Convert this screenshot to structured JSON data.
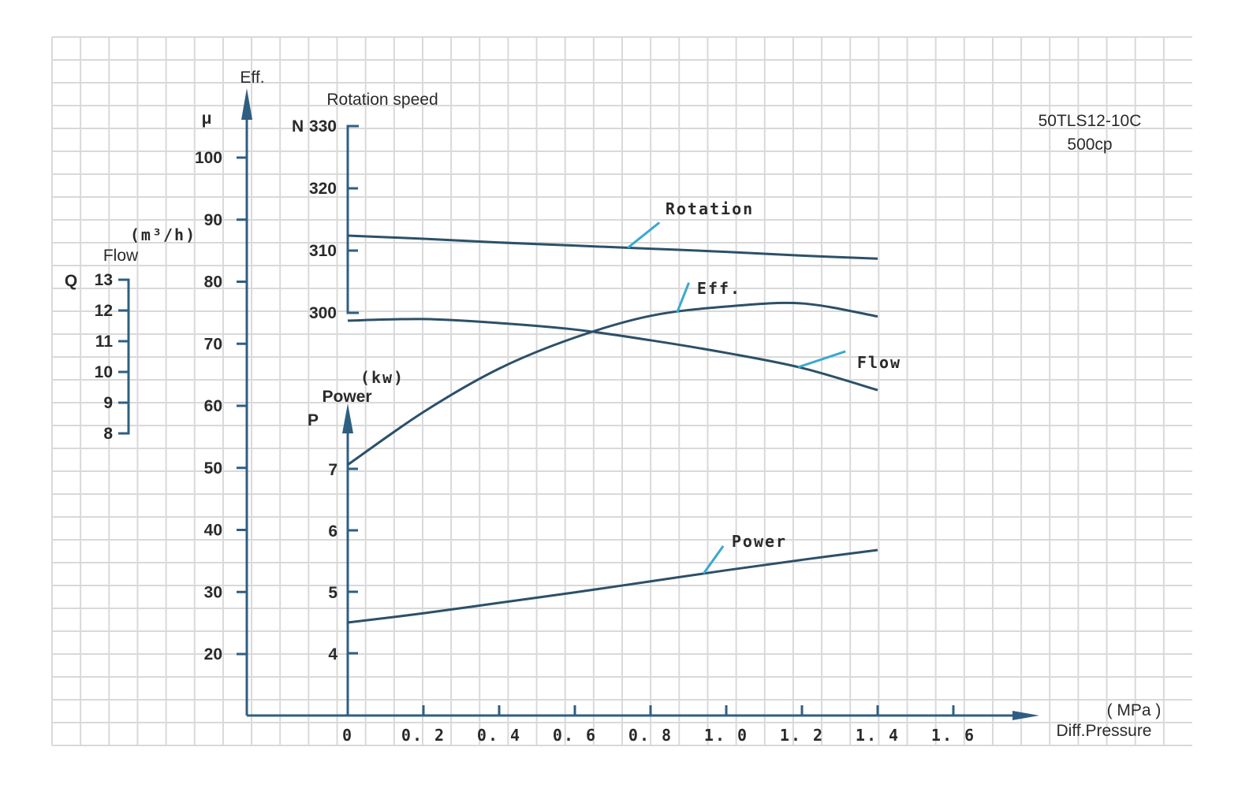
{
  "colors": {
    "axis": "#2f5f80",
    "curve": "#2c5069",
    "leader": "#3aa9cc",
    "grid": "#d9d9d9"
  },
  "chart_data": {
    "type": "line",
    "title": "50TLS12-10C",
    "subtitle": "500cp",
    "grid": true,
    "x": [
      0,
      0.2,
      0.4,
      0.6,
      0.8,
      1.0,
      1.2,
      1.4
    ],
    "xlabel": "Diff.Pressure",
    "xunit": "( MPa )",
    "xlim": [
      0,
      1.7
    ],
    "xticks": [
      "0",
      "0. 2",
      "0. 4",
      "0. 6",
      "0. 8",
      "1. 0",
      "1. 2",
      "1. 4",
      "1. 6"
    ],
    "axes": {
      "eff": {
        "label": "Eff.",
        "symbol": "μ",
        "range": [
          20,
          100
        ],
        "ticks": [
          "100",
          "90",
          "80",
          "70",
          "60",
          "50",
          "40",
          "30",
          "20"
        ]
      },
      "rotation": {
        "label": "Rotation speed",
        "symbol": "N",
        "range": [
          300,
          330
        ],
        "ticks": [
          "330",
          "320",
          "310",
          "300"
        ]
      },
      "flow": {
        "label": "Flow",
        "unit": "(m³/h)",
        "symbol": "Q",
        "range": [
          8,
          13
        ],
        "ticks": [
          "13",
          "12",
          "11",
          "10",
          "9",
          "8"
        ]
      },
      "power": {
        "label": "Power",
        "unit": "(kw)",
        "symbol": "P",
        "range": [
          4,
          7
        ],
        "ticks": [
          "7",
          "6",
          "5",
          "4"
        ]
      }
    },
    "series": [
      {
        "name": "Rotation",
        "axis": "rotation",
        "values": [
          312.4,
          311.9,
          311.3,
          310.8,
          310.3,
          309.8,
          309.2,
          308.7
        ]
      },
      {
        "name": "Eff.",
        "axis": "eff",
        "values": [
          50.5,
          59,
          66,
          71,
          74.5,
          76,
          76.5,
          74.4
        ]
      },
      {
        "name": "Flow",
        "axis": "flow",
        "values": [
          11.67,
          11.72,
          11.59,
          11.38,
          11.03,
          10.62,
          10.13,
          9.41
        ]
      },
      {
        "name": "Power",
        "axis": "power",
        "values": [
          4.5,
          4.65,
          4.82,
          4.99,
          5.17,
          5.35,
          5.52,
          5.68
        ]
      }
    ]
  }
}
